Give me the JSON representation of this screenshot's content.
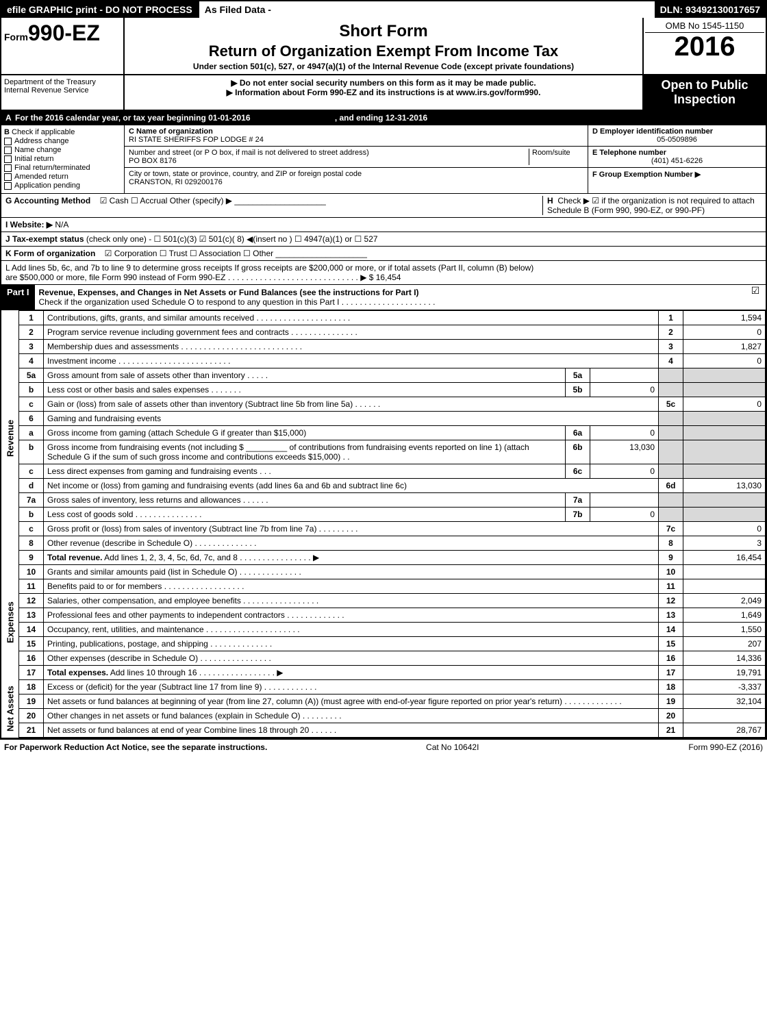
{
  "topbar": {
    "left": "efile GRAPHIC print - DO NOT PROCESS",
    "mid": "As Filed Data -",
    "right": "DLN: 93492130017657"
  },
  "header": {
    "form_prefix": "Form",
    "form_number": "990-EZ",
    "short_form": "Short Form",
    "title": "Return of Organization Exempt From Income Tax",
    "sub": "Under section 501(c), 527, or 4947(a)(1) of the Internal Revenue Code (except private foundations)",
    "omb": "OMB No 1545-1150",
    "year": "2016"
  },
  "dept": {
    "treasury": "Department of the Treasury",
    "irs": "Internal Revenue Service",
    "note1": "▶ Do not enter social security numbers on this form as it may be made public.",
    "note2": "▶ Information about Form 990-EZ and its instructions is at www.irs.gov/form990.",
    "open": "Open to Public Inspection"
  },
  "section_a": {
    "a_label": "A",
    "a_text": "For the 2016 calendar year, or tax year beginning 01-01-2016",
    "a_end": ", and ending 12-31-2016",
    "b_label": "B",
    "b_text": "Check if applicable",
    "b_items": [
      "Address change",
      "Name change",
      "Initial return",
      "Final return/terminated",
      "Amended return",
      "Application pending"
    ],
    "c_label": "C Name of organization",
    "c_name": "RI STATE SHERIFFS FOP LODGE # 24",
    "c_addr_label": "Number and street (or P O box, if mail is not delivered to street address)",
    "c_room": "Room/suite",
    "c_addr": "PO BOX 8176",
    "c_city_label": "City or town, state or province, country, and ZIP or foreign postal code",
    "c_city": "CRANSTON, RI  029200176",
    "d_label": "D Employer identification number",
    "d_ein": "05-0509896",
    "e_label": "E Telephone number",
    "e_phone": "(401) 451-6226",
    "f_label": "F Group Exemption Number  ▶"
  },
  "lines_g": {
    "g_label": "G Accounting Method",
    "g_opts": "☑ Cash   ☐ Accrual   Other (specify) ▶",
    "h_label": "H",
    "h_text": "Check ▶  ☑ if the organization is not required to attach Schedule B (Form 990, 990-EZ, or 990-PF)",
    "i_label": "I Website: ▶",
    "i_val": "N/A",
    "j_label": "J Tax-exempt status",
    "j_text": "(check only one) - ☐ 501(c)(3)  ☑ 501(c)( 8) ◀(insert no )  ☐ 4947(a)(1) or  ☐ 527",
    "k_label": "K Form of organization",
    "k_text": "☑ Corporation   ☐ Trust   ☐ Association   ☐ Other",
    "l_text1": "L Add lines 5b, 6c, and 7b to line 9 to determine gross receipts  If gross receipts are $200,000 or more, or if total assets (Part II, column (B) below)",
    "l_text2": "are $500,000 or more, file Form 990 instead of Form 990-EZ  . . . . . . . . . . . . . . . . . . . . . . . . . . . . . ▶ $ 16,454"
  },
  "part1": {
    "label": "Part I",
    "title": "Revenue, Expenses, and Changes in Net Assets or Fund Balances (see the instructions for Part I)",
    "sub": "Check if the organization used Schedule O to respond to any question in this Part I . . . . . . . . . . . . . . . . . . . . .",
    "check": "☑"
  },
  "sections": {
    "revenue": "Revenue",
    "expenses": "Expenses",
    "netassets": "Net Assets"
  },
  "rows": [
    {
      "n": "1",
      "d": "Contributions, gifts, grants, and similar amounts received  . . . . . . . . . . . . . . . . . . . . .",
      "rn": "1",
      "rv": "1,594"
    },
    {
      "n": "2",
      "d": "Program service revenue including government fees and contracts  . . . . . . . . . . . . . . .",
      "rn": "2",
      "rv": "0"
    },
    {
      "n": "3",
      "d": "Membership dues and assessments  . . . . . . . . . . . . . . . . . . . . . . . . . . .",
      "rn": "3",
      "rv": "1,827"
    },
    {
      "n": "4",
      "d": "Investment income . . . . . . . . . . . . . . . . . . . . . . . . .",
      "rn": "4",
      "rv": "0"
    },
    {
      "n": "5a",
      "d": "Gross amount from sale of assets other than inventory  . . . . .",
      "mn": "5a",
      "mv": "",
      "shaded": true
    },
    {
      "n": "b",
      "d": "Less  cost or other basis and sales expenses  . . . . . . .",
      "mn": "5b",
      "mv": "0",
      "shaded": true
    },
    {
      "n": "c",
      "d": "Gain or (loss) from sale of assets other than inventory (Subtract line 5b from line 5a) . . . . . .",
      "rn": "5c",
      "rv": "0"
    },
    {
      "n": "6",
      "d": "Gaming and fundraising events",
      "shaded": true,
      "noval": true
    },
    {
      "n": "a",
      "d": "Gross income from gaming (attach Schedule G if greater than $15,000)",
      "mn": "6a",
      "mv": "0",
      "shaded": true
    },
    {
      "n": "b",
      "d": "Gross income from fundraising events (not including $ _________ of contributions from fundraising events reported on line 1) (attach Schedule G if the sum of such gross income and contributions exceeds $15,000)    . .",
      "mn": "6b",
      "mv": "13,030",
      "shaded": true
    },
    {
      "n": "c",
      "d": "Less  direct expenses from gaming and fundraising events        . . .",
      "mn": "6c",
      "mv": "0",
      "shaded": true
    },
    {
      "n": "d",
      "d": "Net income or (loss) from gaming and fundraising events (add lines 6a and 6b and subtract line 6c)",
      "rn": "6d",
      "rv": "13,030"
    },
    {
      "n": "7a",
      "d": "Gross sales of inventory, less returns and allowances  . . . . . .",
      "mn": "7a",
      "mv": "",
      "shaded": true
    },
    {
      "n": "b",
      "d": "Less  cost of goods sold            . . . . . . . . . . . . . . .",
      "mn": "7b",
      "mv": "0",
      "shaded": true
    },
    {
      "n": "c",
      "d": "Gross profit or (loss) from sales of inventory (Subtract line 7b from line 7a) . . . . . . . . .",
      "rn": "7c",
      "rv": "0"
    },
    {
      "n": "8",
      "d": "Other revenue (describe in Schedule O)                            . . . . . . . . . . . . . .",
      "rn": "8",
      "rv": "3"
    },
    {
      "n": "9",
      "d": "Total revenue. Add lines 1, 2, 3, 4, 5c, 6d, 7c, and 8  . . . . . . . . . . . . . . . .  ▶",
      "rn": "9",
      "rv": "16,454",
      "bold": true
    }
  ],
  "exp_rows": [
    {
      "n": "10",
      "d": "Grants and similar amounts paid (list in Schedule O)            . . . . . . . . . . . . . .",
      "rn": "10",
      "rv": ""
    },
    {
      "n": "11",
      "d": "Benefits paid to or for members                    . . . . . . . . . . . . . . . . . .",
      "rn": "11",
      "rv": ""
    },
    {
      "n": "12",
      "d": "Salaries, other compensation, and employee benefits  . . . . . . . . . . . . . . . . .",
      "rn": "12",
      "rv": "2,049"
    },
    {
      "n": "13",
      "d": "Professional fees and other payments to independent contractors  . . . . . . . . . . . . .",
      "rn": "13",
      "rv": "1,649"
    },
    {
      "n": "14",
      "d": "Occupancy, rent, utilities, and maintenance . . . . . . . . . . . . . . . . . . . . .",
      "rn": "14",
      "rv": "1,550"
    },
    {
      "n": "15",
      "d": "Printing, publications, postage, and shipping                . . . . . . . . . . . . . .",
      "rn": "15",
      "rv": "207"
    },
    {
      "n": "16",
      "d": "Other expenses (describe in Schedule O)            . . . . . . . . . . . . . . . .",
      "rn": "16",
      "rv": "14,336"
    },
    {
      "n": "17",
      "d": "Total expenses. Add lines 10 through 16        . . . . . . . . . . . . . . . . .  ▶",
      "rn": "17",
      "rv": "19,791",
      "bold": true
    }
  ],
  "na_rows": [
    {
      "n": "18",
      "d": "Excess or (deficit) for the year (Subtract line 17 from line 9)        . . . . . . . . . . . .",
      "rn": "18",
      "rv": "-3,337"
    },
    {
      "n": "19",
      "d": "Net assets or fund balances at beginning of year (from line 27, column (A)) (must agree with end-of-year figure reported on prior year's return)                . . . . . . . . . . . . .",
      "rn": "19",
      "rv": "32,104"
    },
    {
      "n": "20",
      "d": "Other changes in net assets or fund balances (explain in Schedule O)    . . . . . . . . .",
      "rn": "20",
      "rv": ""
    },
    {
      "n": "21",
      "d": "Net assets or fund balances at end of year  Combine lines 18 through 20        . . . . . .",
      "rn": "21",
      "rv": "28,767"
    }
  ],
  "footer": {
    "left": "For Paperwork Reduction Act Notice, see the separate instructions.",
    "mid": "Cat No  10642I",
    "right": "Form 990-EZ (2016)"
  }
}
